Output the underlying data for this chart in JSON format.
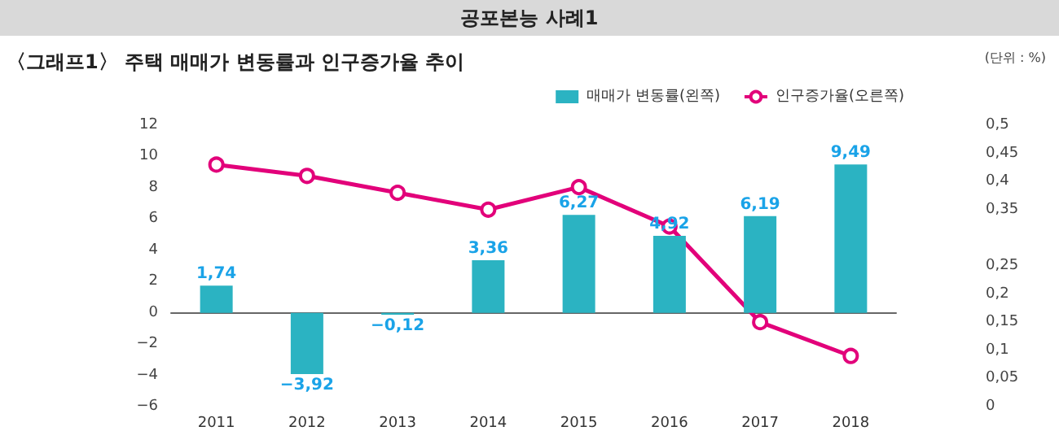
{
  "chart_data": {
    "type": "bar",
    "title": "공포본능 사례1",
    "subtitle": "〈그래프1〉 주택 매매가 변동률과 인구증가율 추이",
    "annotations": [
      "(단위 : %)"
    ],
    "categories": [
      "2011",
      "2012",
      "2013",
      "2014",
      "2015",
      "2016",
      "2017",
      "2018"
    ],
    "series": [
      {
        "name": "매매가 변동률(왼쪽)",
        "color": "#2bb3c2",
        "values": [
          1.74,
          -3.92,
          -0.12,
          3.36,
          6.27,
          4.92,
          6.19,
          9.49
        ],
        "value_labels": [
          "1,74",
          "−3,92",
          "−0,12",
          "3,36",
          "6,27",
          "4,92",
          "6,19",
          "9,49"
        ]
      },
      {
        "name": "인구증가율(오른쪽)",
        "type": "line",
        "axis": "y2",
        "color": "#e2007a",
        "marker": "circle",
        "values": [
          0.43,
          0.41,
          0.38,
          0.35,
          0.39,
          0.32,
          0.15,
          0.09
        ]
      }
    ],
    "ylim": [
      -6,
      12
    ],
    "yticks": [
      {
        "value": -6,
        "label": "−6"
      },
      {
        "value": -4,
        "label": "−4"
      },
      {
        "value": -2,
        "label": "−2"
      },
      0,
      2,
      4,
      6,
      8,
      10,
      12
    ],
    "y2lim": [
      0,
      0.5
    ],
    "y2ticks": [
      0,
      {
        "value": 0.05,
        "label": "0,05"
      },
      {
        "value": 0.1,
        "label": "0,1"
      },
      {
        "value": 0.15,
        "label": "0,15"
      },
      {
        "value": 0.2,
        "label": "0,2"
      },
      {
        "value": 0.25,
        "label": "0,25"
      },
      {
        "value": 0.35,
        "label": "0,35"
      },
      {
        "value": 0.4,
        "label": "0,4"
      },
      {
        "value": 0.45,
        "label": "0,45"
      },
      {
        "value": 0.5,
        "label": "0,5"
      }
    ],
    "legend": "top right"
  }
}
